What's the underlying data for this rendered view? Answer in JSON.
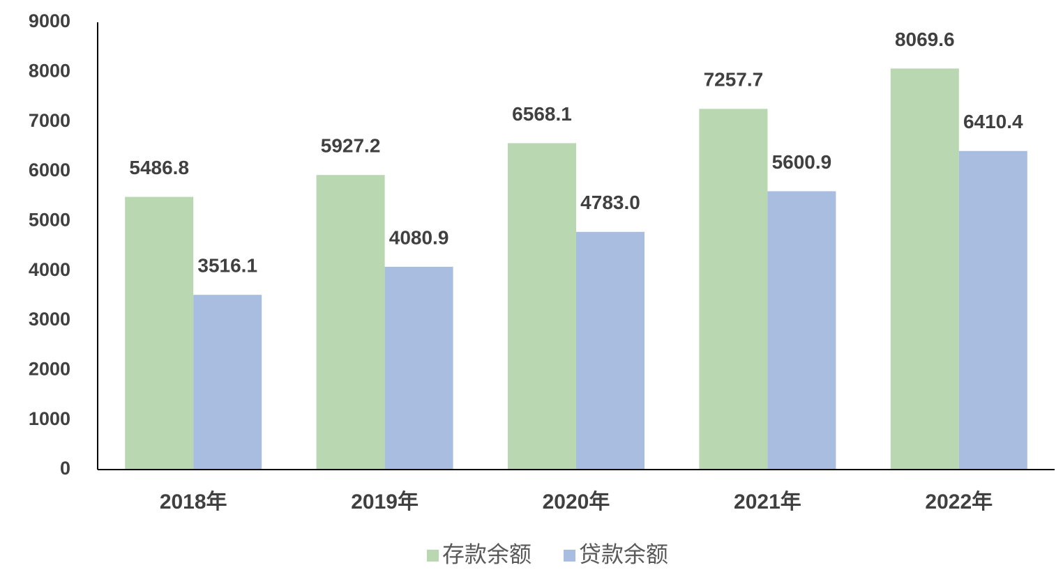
{
  "chart_data": {
    "type": "bar",
    "categories": [
      "2018年",
      "2019年",
      "2020年",
      "2021年",
      "2022年"
    ],
    "series": [
      {
        "name": "存款余额",
        "color": "#b9d7b0",
        "values": [
          5486.8,
          5927.2,
          6568.1,
          7257.7,
          8069.6
        ],
        "value_labels": [
          "5486.8",
          "5927.2",
          "6568.1",
          "7257.7",
          "8069.6"
        ]
      },
      {
        "name": "贷款余额",
        "color": "#a9bde0",
        "values": [
          3516.1,
          4080.9,
          4783.0,
          5600.9,
          6410.4
        ],
        "value_labels": [
          "3516.1",
          "4080.9",
          "4783.0",
          "5600.9",
          "6410.4"
        ]
      }
    ],
    "ylim": [
      0,
      9000
    ],
    "yticks": [
      0,
      1000,
      2000,
      3000,
      4000,
      5000,
      6000,
      7000,
      8000,
      9000
    ],
    "grid": false,
    "legend": "bottom"
  }
}
